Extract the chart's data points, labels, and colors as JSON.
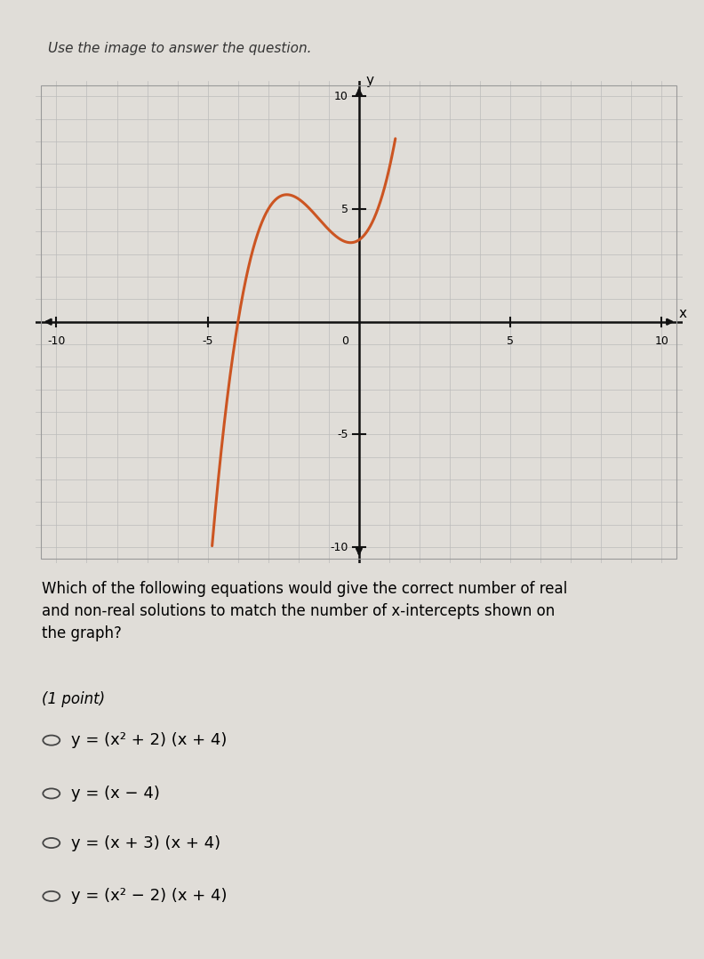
{
  "title_text": "Use the image to answer the question.",
  "question_text": "Which of the following equations would give the correct number of real\nand non-real solutions to match the number of x-intercepts shown on\nthe graph?",
  "points_text": "(1 point)",
  "options": [
    "y = (x² + 2) (x + 4)",
    "y = (x − 4)",
    "y = (x + 3) (x + 4)",
    "y = (x² − 2) (x + 4)"
  ],
  "curve_color": "#cc5522",
  "curve_linewidth": 2.2,
  "grid_major_color": "#bbbbbb",
  "grid_minor_color": "#cccccc",
  "axis_color": "#111111",
  "background_color": "#e0ddd8",
  "plot_bg_color": "#f0eeea",
  "xmin": -10,
  "xmax": 10,
  "ymin": -10,
  "ymax": 10,
  "scale_factor": 2.2,
  "fig_width": 7.92,
  "fig_height": 10.78
}
